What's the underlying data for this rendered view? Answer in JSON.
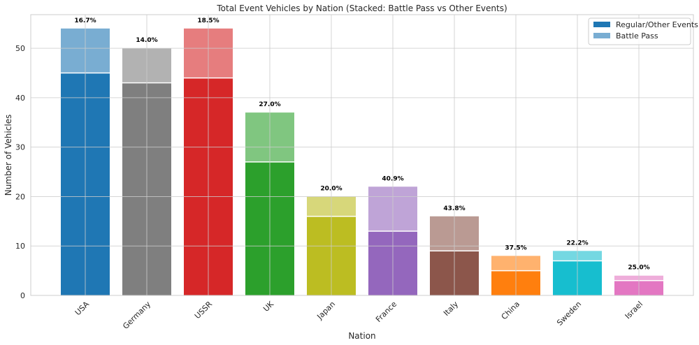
{
  "chart_data": {
    "type": "bar",
    "stacked": true,
    "title": "Total Event Vehicles by Nation (Stacked: Battle Pass vs Other Events)",
    "xlabel": "Nation",
    "ylabel": "Number of Vehicles",
    "ylim": [
      0,
      56.8
    ],
    "yticks": [
      0,
      10,
      20,
      30,
      40,
      50
    ],
    "grid": true,
    "legend_position": "top-right",
    "categories": [
      "USA",
      "Germany",
      "USSR",
      "UK",
      "Japan",
      "France",
      "Italy",
      "China",
      "Sweden",
      "Israel"
    ],
    "colors": [
      "#1f77b4",
      "#7f7f7f",
      "#d62728",
      "#2ca02c",
      "#bcbd22",
      "#9467bd",
      "#8c564b",
      "#ff7f0e",
      "#17becf",
      "#e377c2"
    ],
    "series": [
      {
        "name": "Regular/Other Events",
        "values": [
          45,
          43,
          44,
          27,
          16,
          13,
          9,
          5,
          7,
          3
        ]
      },
      {
        "name": "Battle Pass",
        "values": [
          9,
          7,
          10,
          10,
          4,
          9,
          7,
          3,
          2,
          1
        ]
      }
    ],
    "percent_labels": [
      "16.7%",
      "14.0%",
      "18.5%",
      "27.0%",
      "20.0%",
      "40.9%",
      "43.8%",
      "37.5%",
      "22.2%",
      "25.0%"
    ]
  }
}
